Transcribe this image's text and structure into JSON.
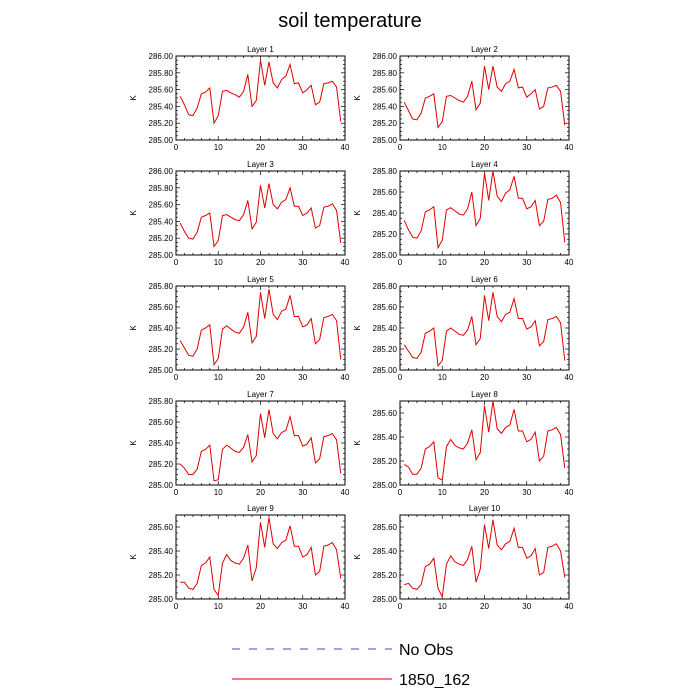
{
  "chart_data": {
    "type": "line",
    "title": "soil temperature",
    "legend": {
      "placement": "bottom",
      "entries": [
        {
          "label": "No Obs",
          "color": "#4a4aa8",
          "style": "dashed"
        },
        {
          "label": "1850_162",
          "color": "#e00000",
          "style": "solid"
        }
      ]
    },
    "grid": false,
    "x": [
      1,
      2,
      3,
      4,
      5,
      6,
      7,
      8,
      9,
      10,
      11,
      12,
      13,
      14,
      15,
      16,
      17,
      18,
      19,
      20,
      21,
      22,
      23,
      24,
      25,
      26,
      27,
      28,
      29,
      30,
      31,
      32,
      33,
      34,
      35,
      36,
      37,
      38,
      39
    ],
    "xlim": [
      0,
      40
    ],
    "xticks": [
      "0",
      "10",
      "20",
      "30",
      "40"
    ],
    "panels": [
      {
        "title": "Layer 1",
        "ylabel": "K",
        "ylim": [
          285.0,
          286.0
        ],
        "yticks": [
          "285.00",
          "285.20",
          "285.40",
          "285.60",
          "285.80",
          "286.00"
        ],
        "series": [
          {
            "values": [
              285.52,
              285.42,
              285.3,
              285.29,
              285.38,
              285.55,
              285.57,
              285.62,
              285.2,
              285.29,
              285.58,
              285.59,
              285.56,
              285.54,
              285.51,
              285.58,
              285.78,
              285.4,
              285.47,
              285.95,
              285.65,
              285.93,
              285.68,
              285.62,
              285.72,
              285.76,
              285.9,
              285.67,
              285.68,
              285.56,
              285.6,
              285.65,
              285.42,
              285.45,
              285.67,
              285.68,
              285.7,
              285.63,
              285.22
            ]
          }
        ]
      },
      {
        "title": "Layer 2",
        "ylabel": "K",
        "ylim": [
          285.0,
          286.0
        ],
        "yticks": [
          "285.00",
          "285.20",
          "285.40",
          "285.60",
          "285.80",
          "286.00"
        ],
        "series": [
          {
            "values": [
              285.45,
              285.35,
              285.25,
              285.24,
              285.32,
              285.5,
              285.52,
              285.55,
              285.15,
              285.22,
              285.52,
              285.53,
              285.5,
              285.47,
              285.45,
              285.52,
              285.7,
              285.36,
              285.44,
              285.88,
              285.6,
              285.88,
              285.63,
              285.58,
              285.67,
              285.7,
              285.84,
              285.62,
              285.63,
              285.51,
              285.55,
              285.6,
              285.37,
              285.4,
              285.62,
              285.63,
              285.65,
              285.58,
              285.18
            ]
          }
        ]
      },
      {
        "title": "Layer 3",
        "ylabel": "K",
        "ylim": [
          285.0,
          286.0
        ],
        "yticks": [
          "285.00",
          "285.20",
          "285.40",
          "285.60",
          "285.80",
          "286.00"
        ],
        "series": [
          {
            "values": [
              285.38,
              285.28,
              285.2,
              285.19,
              285.27,
              285.45,
              285.47,
              285.5,
              285.1,
              285.17,
              285.47,
              285.48,
              285.45,
              285.42,
              285.41,
              285.48,
              285.65,
              285.31,
              285.39,
              285.83,
              285.56,
              285.85,
              285.6,
              285.55,
              285.63,
              285.66,
              285.8,
              285.58,
              285.58,
              285.47,
              285.5,
              285.56,
              285.32,
              285.35,
              285.57,
              285.58,
              285.61,
              285.53,
              285.14
            ]
          }
        ]
      },
      {
        "title": "Layer 4",
        "ylabel": "K",
        "ylim": [
          285.0,
          285.8
        ],
        "yticks": [
          "285.00",
          "285.20",
          "285.40",
          "285.60",
          "285.80"
        ],
        "series": [
          {
            "values": [
              285.33,
              285.24,
              285.17,
              285.16,
              285.23,
              285.41,
              285.43,
              285.46,
              285.07,
              285.14,
              285.43,
              285.45,
              285.42,
              285.39,
              285.38,
              285.44,
              285.6,
              285.28,
              285.35,
              285.78,
              285.52,
              285.8,
              285.56,
              285.51,
              285.59,
              285.62,
              285.75,
              285.54,
              285.54,
              285.44,
              285.46,
              285.52,
              285.28,
              285.32,
              285.53,
              285.54,
              285.57,
              285.5,
              285.12
            ]
          }
        ]
      },
      {
        "title": "Layer 5",
        "ylabel": "K",
        "ylim": [
          285.0,
          285.8
        ],
        "yticks": [
          "285.00",
          "285.20",
          "285.40",
          "285.60",
          "285.80"
        ],
        "series": [
          {
            "values": [
              285.28,
              285.21,
              285.14,
              285.13,
              285.2,
              285.38,
              285.4,
              285.43,
              285.05,
              285.11,
              285.39,
              285.42,
              285.39,
              285.36,
              285.35,
              285.41,
              285.55,
              285.26,
              285.32,
              285.74,
              285.49,
              285.77,
              285.53,
              285.48,
              285.56,
              285.58,
              285.71,
              285.51,
              285.51,
              285.41,
              285.43,
              285.49,
              285.25,
              285.29,
              285.5,
              285.51,
              285.53,
              285.47,
              285.1
            ]
          }
        ]
      },
      {
        "title": "Layer 6",
        "ylabel": "K",
        "ylim": [
          285.0,
          285.8
        ],
        "yticks": [
          "285.00",
          "285.20",
          "285.40",
          "285.60",
          "285.80"
        ],
        "series": [
          {
            "values": [
              285.24,
              285.18,
              285.12,
              285.11,
              285.17,
              285.35,
              285.37,
              285.4,
              285.04,
              285.09,
              285.37,
              285.4,
              285.37,
              285.34,
              285.33,
              285.38,
              285.51,
              285.24,
              285.3,
              285.71,
              285.47,
              285.74,
              285.51,
              285.46,
              285.53,
              285.55,
              285.68,
              285.49,
              285.49,
              285.39,
              285.41,
              285.47,
              285.23,
              285.27,
              285.48,
              285.49,
              285.51,
              285.45,
              285.09
            ]
          }
        ]
      },
      {
        "title": "Layer 7",
        "ylabel": "K",
        "ylim": [
          285.0,
          285.8
        ],
        "yticks": [
          "285.00",
          "285.20",
          "285.40",
          "285.60",
          "285.80"
        ],
        "series": [
          {
            "values": [
              285.2,
              285.16,
              285.1,
              285.1,
              285.15,
              285.32,
              285.34,
              285.38,
              285.04,
              285.05,
              285.34,
              285.38,
              285.35,
              285.32,
              285.31,
              285.36,
              285.48,
              285.22,
              285.28,
              285.68,
              285.45,
              285.72,
              285.49,
              285.44,
              285.5,
              285.52,
              285.65,
              285.47,
              285.47,
              285.37,
              285.39,
              285.45,
              285.21,
              285.25,
              285.46,
              285.47,
              285.49,
              285.43,
              285.11
            ]
          }
        ]
      },
      {
        "title": "Layer 8",
        "ylabel": "K",
        "ylim": [
          285.0,
          285.7
        ],
        "yticks": [
          "285.00",
          "285.20",
          "285.40",
          "285.60"
        ],
        "series": [
          {
            "values": [
              285.17,
              285.15,
              285.09,
              285.09,
              285.14,
              285.3,
              285.32,
              285.36,
              285.06,
              285.04,
              285.32,
              285.38,
              285.33,
              285.31,
              285.3,
              285.35,
              285.46,
              285.21,
              285.27,
              285.66,
              285.44,
              285.7,
              285.47,
              285.43,
              285.48,
              285.5,
              285.63,
              285.45,
              285.45,
              285.36,
              285.38,
              285.44,
              285.2,
              285.24,
              285.45,
              285.46,
              285.48,
              285.42,
              285.14
            ]
          }
        ]
      },
      {
        "title": "Layer 9",
        "ylabel": "K",
        "ylim": [
          285.0,
          285.7
        ],
        "yticks": [
          "285.00",
          "285.20",
          "285.40",
          "285.60"
        ],
        "series": [
          {
            "values": [
              285.14,
              285.14,
              285.09,
              285.08,
              285.13,
              285.28,
              285.3,
              285.35,
              285.08,
              285.03,
              285.3,
              285.37,
              285.32,
              285.3,
              285.29,
              285.34,
              285.45,
              285.15,
              285.26,
              285.64,
              285.43,
              285.68,
              285.46,
              285.42,
              285.47,
              285.49,
              285.61,
              285.44,
              285.44,
              285.35,
              285.37,
              285.43,
              285.2,
              285.23,
              285.44,
              285.45,
              285.47,
              285.41,
              285.17
            ]
          }
        ]
      },
      {
        "title": "Layer 10",
        "ylabel": "K",
        "ylim": [
          285.0,
          285.7
        ],
        "yticks": [
          "285.00",
          "285.20",
          "285.40",
          "285.60"
        ],
        "series": [
          {
            "values": [
              285.12,
              285.13,
              285.09,
              285.08,
              285.12,
              285.27,
              285.29,
              285.34,
              285.09,
              285.02,
              285.29,
              285.36,
              285.31,
              285.29,
              285.28,
              285.33,
              285.44,
              285.14,
              285.25,
              285.62,
              285.42,
              285.66,
              285.45,
              285.41,
              285.46,
              285.48,
              285.59,
              285.43,
              285.43,
              285.34,
              285.36,
              285.42,
              285.2,
              285.22,
              285.43,
              285.44,
              285.46,
              285.4,
              285.18
            ]
          }
        ]
      }
    ]
  },
  "colors": {
    "line": "#e00000",
    "no_obs": "#4a4aa8",
    "axis": "#000000"
  }
}
